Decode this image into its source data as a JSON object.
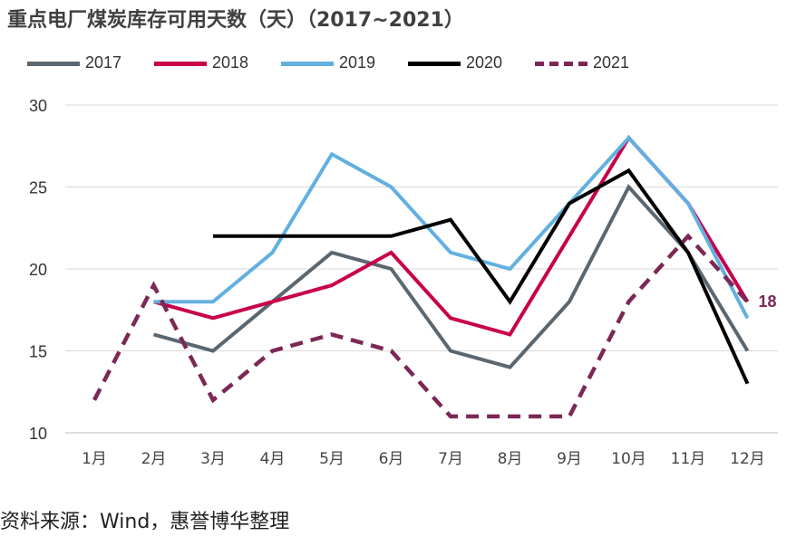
{
  "title": "重点电厂煤炭库存可用天数（天）（2017~2021）",
  "source": "资料来源：Wind，惠誉博华整理",
  "chart_data": {
    "type": "line",
    "categories": [
      "1月",
      "2月",
      "3月",
      "4月",
      "5月",
      "6月",
      "7月",
      "8月",
      "9月",
      "10月",
      "11月",
      "12月"
    ],
    "ylim": [
      10,
      30
    ],
    "yticks": [
      10,
      15,
      20,
      25,
      30
    ],
    "grid": true,
    "legend_position": "top",
    "series": [
      {
        "name": "2017",
        "color": "#5b6770",
        "dash": false,
        "values": [
          null,
          16,
          15,
          18,
          21,
          20,
          15,
          14,
          18,
          25,
          21,
          15
        ]
      },
      {
        "name": "2018",
        "color": "#c8004b",
        "dash": false,
        "values": [
          null,
          18,
          17,
          18,
          19,
          21,
          17,
          16,
          22,
          28,
          24,
          18
        ]
      },
      {
        "name": "2019",
        "color": "#62b0e0",
        "dash": false,
        "values": [
          null,
          18,
          18,
          21,
          27,
          25,
          21,
          20,
          24,
          28,
          24,
          17
        ]
      },
      {
        "name": "2020",
        "color": "#000000",
        "dash": false,
        "values": [
          null,
          null,
          22,
          22,
          22,
          22,
          23,
          18,
          24,
          26,
          21,
          13
        ]
      },
      {
        "name": "2021",
        "color": "#7b2856",
        "dash": true,
        "values": [
          12,
          19,
          12,
          15,
          16,
          15,
          11,
          11,
          11,
          18,
          22,
          18
        ]
      }
    ],
    "annotations": [
      {
        "text": "18",
        "series": "2021",
        "category": "12月",
        "color": "#7b2856"
      }
    ]
  }
}
